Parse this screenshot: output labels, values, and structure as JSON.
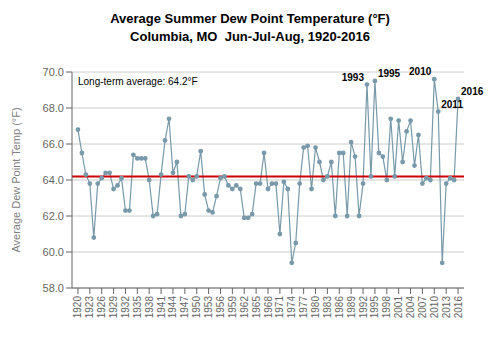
{
  "chart_data": {
    "type": "line",
    "title": "Average Summer Dew Point Temperature (°F)",
    "subtitle": "Columbia, MO  Jun-Jul-Aug, 1920-2016",
    "y_label": "Average Dew Point Temp (°F)",
    "x": [
      1920,
      1921,
      1922,
      1923,
      1924,
      1925,
      1926,
      1927,
      1928,
      1929,
      1930,
      1931,
      1932,
      1933,
      1934,
      1935,
      1936,
      1937,
      1938,
      1939,
      1940,
      1941,
      1942,
      1943,
      1944,
      1945,
      1946,
      1947,
      1948,
      1949,
      1950,
      1951,
      1952,
      1953,
      1954,
      1955,
      1956,
      1957,
      1958,
      1959,
      1960,
      1961,
      1962,
      1963,
      1964,
      1965,
      1966,
      1967,
      1968,
      1969,
      1970,
      1971,
      1972,
      1973,
      1974,
      1975,
      1976,
      1977,
      1978,
      1979,
      1980,
      1981,
      1982,
      1983,
      1984,
      1985,
      1986,
      1987,
      1988,
      1989,
      1990,
      1991,
      1992,
      1993,
      1994,
      1995,
      1996,
      1997,
      1998,
      1999,
      2000,
      2001,
      2002,
      2003,
      2004,
      2005,
      2006,
      2007,
      2008,
      2009,
      2010,
      2011,
      2012,
      2013,
      2014,
      2015,
      2016
    ],
    "values": [
      66.8,
      65.5,
      64.3,
      63.8,
      60.8,
      63.8,
      64.1,
      64.4,
      64.4,
      63.5,
      63.7,
      64.1,
      62.3,
      62.3,
      65.4,
      65.2,
      65.2,
      65.2,
      64.0,
      62.0,
      62.1,
      64.3,
      66.2,
      67.4,
      64.4,
      65.0,
      62.0,
      62.1,
      64.2,
      64.0,
      64.2,
      65.6,
      63.2,
      62.3,
      62.2,
      63.1,
      64.1,
      64.2,
      63.7,
      63.5,
      63.7,
      63.5,
      61.9,
      61.9,
      62.1,
      63.8,
      63.8,
      65.5,
      63.5,
      63.8,
      63.8,
      61.0,
      63.9,
      63.5,
      59.4,
      60.5,
      63.8,
      65.8,
      65.9,
      63.5,
      65.8,
      65.0,
      64.0,
      64.2,
      65.0,
      62.0,
      65.5,
      65.5,
      62.0,
      66.1,
      65.3,
      62.0,
      63.8,
      69.3,
      64.2,
      69.5,
      65.5,
      65.3,
      64.0,
      67.4,
      64.2,
      67.3,
      65.0,
      66.7,
      67.3,
      64.8,
      66.5,
      63.8,
      64.1,
      64.0,
      69.6,
      67.8,
      59.4,
      63.8,
      64.1,
      64.0,
      68.5
    ],
    "color": "#7799AA",
    "marker": "circle",
    "xlim": [
      1918.5,
      2017.5
    ],
    "xticks": [
      1920,
      1923,
      1926,
      1929,
      1932,
      1935,
      1938,
      1941,
      1944,
      1947,
      1950,
      1953,
      1956,
      1959,
      1962,
      1965,
      1968,
      1971,
      1974,
      1977,
      1980,
      1983,
      1986,
      1989,
      1992,
      1995,
      1998,
      2001,
      2004,
      2007,
      2010,
      2013,
      2016
    ],
    "ylim": [
      58,
      70
    ],
    "yticks": [
      {
        "value": 58,
        "label": "58.0"
      },
      {
        "value": 60,
        "label": "60.0"
      },
      {
        "value": 62,
        "label": "62.0"
      },
      {
        "value": 64,
        "label": "64.0"
      },
      {
        "value": 66,
        "label": "66.0"
      },
      {
        "value": 68,
        "label": "68.0"
      },
      {
        "value": 70,
        "label": "70.0"
      }
    ],
    "grid": true,
    "reference_lines": [
      {
        "y": 64.2,
        "label": "Long-term average: 64.2°F",
        "color": "#CC0000"
      }
    ],
    "annotations": [
      {
        "x": 1993,
        "y": 69.3,
        "text": "1993"
      },
      {
        "x": 1995,
        "y": 69.5,
        "text": "1995"
      },
      {
        "x": 2010,
        "y": 69.6,
        "text": "2010"
      },
      {
        "x": 2011,
        "y": 67.8,
        "text": "2011"
      },
      {
        "x": 2016,
        "y": 68.5,
        "text": "2016"
      }
    ]
  }
}
